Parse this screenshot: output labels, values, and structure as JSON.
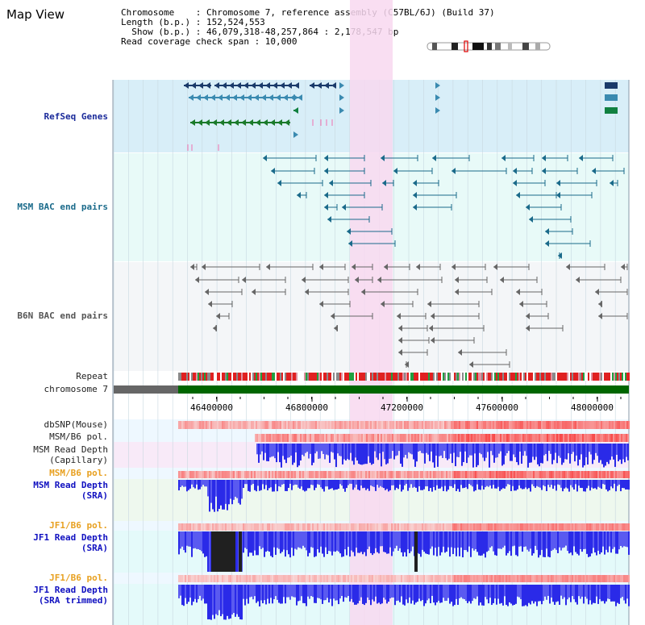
{
  "title": "Map View",
  "info": {
    "line1": "Chromosome    : Chromosome 7, reference assembly (C57BL/6J) (Build 37)",
    "line2": "Length (b.p.) : 152,524,553",
    "line3": "  Show (b.p.) : 46,079,318-48,257,864 : 2,178,547 bp",
    "line4": "Read coverage check span : 10,000"
  },
  "tracks": {
    "refseq": "RefSeq Genes",
    "msm_bac": "MSM BAC end pairs",
    "b6n_bac": "B6N BAC end pairs",
    "repeat": "Repeat",
    "chromosome": "chromosome 7",
    "dbsnp": "dbSNP(Mouse)",
    "msm_b6_pol_1": "MSM/B6 pol.",
    "msm_depth_cap_1": "MSM Read Depth",
    "msm_depth_cap_2": "(Capillary)",
    "msm_b6_pol_2": "MSM/B6 pol.",
    "msm_depth_sra_1": "MSM Read Depth",
    "msm_depth_sra_2": "(SRA)",
    "jf1_b6_pol_1": "JF1/B6 pol.",
    "jf1_depth_1": "JF1 Read Depth",
    "jf1_depth_2": "(SRA)",
    "jf1_b6_pol_2": "JF1/B6 pol.",
    "jf1_trim_1": "JF1 Read Depth",
    "jf1_trim_2": "(SRA trimmed)"
  },
  "axis": {
    "ticks": [
      "46400000",
      "46800000",
      "47200000",
      "47600000",
      "48000000"
    ]
  },
  "colors": {
    "highlight": "#f8d8f0",
    "refseq_bg": "#d8eef8",
    "bac_bg": "#e8faf8",
    "b6n_bg": "#f4f6f8",
    "chromosome": "#006600",
    "depth_blue": "#2020e0"
  }
}
